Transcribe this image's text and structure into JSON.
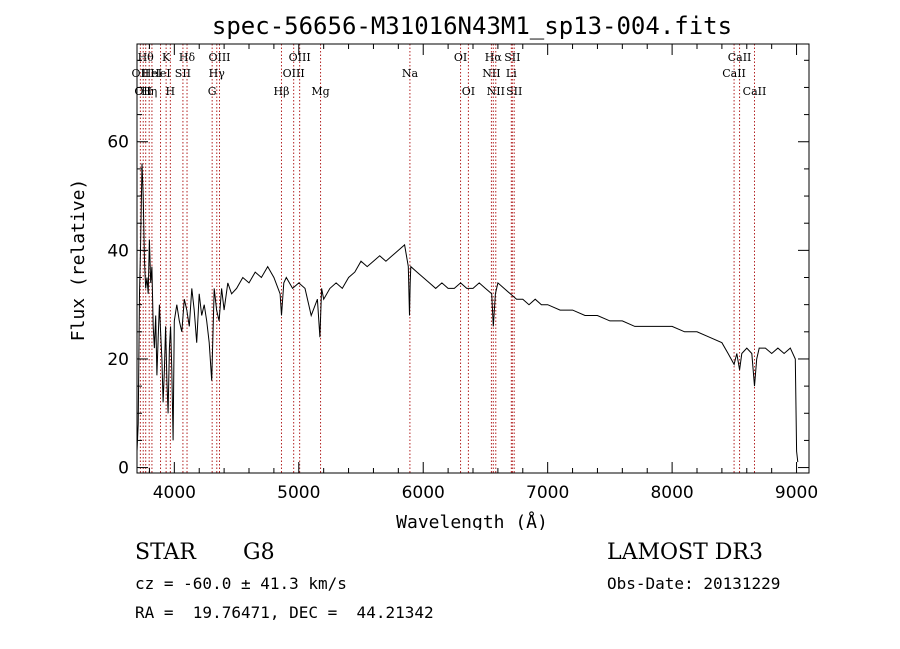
{
  "chart_data": {
    "type": "line",
    "title": "spec-56656-M31016N43M1_sp13-004.fits",
    "xlabel": "Wavelength (Å)",
    "ylabel": "Flux (relative)",
    "xlim": [
      3700,
      9100
    ],
    "ylim": [
      -1,
      78
    ],
    "x_ticks": [
      4000,
      5000,
      6000,
      7000,
      8000,
      9000
    ],
    "y_ticks": [
      0,
      20,
      40,
      60
    ],
    "x_minor_step": 200,
    "y_minor_step": 5,
    "grid": false,
    "line_color": "#000000",
    "marker_color": "#b22222",
    "series": [
      {
        "name": "flux",
        "x": [
          3700,
          3710,
          3720,
          3730,
          3740,
          3750,
          3760,
          3770,
          3780,
          3790,
          3800,
          3810,
          3820,
          3830,
          3840,
          3850,
          3860,
          3870,
          3880,
          3890,
          3900,
          3910,
          3920,
          3930,
          3940,
          3950,
          3960,
          3970,
          3980,
          3990,
          4000,
          4020,
          4040,
          4060,
          4080,
          4100,
          4120,
          4140,
          4160,
          4180,
          4200,
          4220,
          4240,
          4260,
          4280,
          4300,
          4320,
          4340,
          4360,
          4380,
          4400,
          4430,
          4460,
          4500,
          4550,
          4600,
          4650,
          4700,
          4750,
          4800,
          4850,
          4861,
          4880,
          4900,
          4950,
          5000,
          5050,
          5100,
          5150,
          5170,
          5183,
          5200,
          5250,
          5300,
          5350,
          5400,
          5450,
          5500,
          5550,
          5600,
          5650,
          5700,
          5750,
          5800,
          5850,
          5880,
          5890,
          5895,
          5900,
          5950,
          6000,
          6050,
          6100,
          6150,
          6200,
          6250,
          6300,
          6350,
          6400,
          6450,
          6500,
          6550,
          6563,
          6580,
          6600,
          6650,
          6700,
          6750,
          6800,
          6850,
          6900,
          6950,
          7000,
          7100,
          7200,
          7300,
          7400,
          7500,
          7600,
          7700,
          7800,
          7900,
          8000,
          8100,
          8200,
          8300,
          8400,
          8450,
          8498,
          8520,
          8542,
          8560,
          8600,
          8640,
          8662,
          8680,
          8700,
          8750,
          8800,
          8850,
          8900,
          8950,
          8990,
          9000,
          9010
        ],
        "y": [
          3,
          8,
          32,
          42,
          56,
          50,
          38,
          33,
          35,
          32,
          42,
          34,
          37,
          26,
          22,
          28,
          17,
          24,
          30,
          25,
          20,
          12,
          18,
          26,
          16,
          10,
          22,
          26,
          18,
          5,
          27,
          30,
          27,
          25,
          31,
          29,
          26,
          33,
          29,
          23,
          32,
          28,
          30,
          27,
          23,
          16,
          33,
          29,
          27,
          33,
          29,
          34,
          32,
          33,
          35,
          34,
          36,
          35,
          37,
          35,
          32,
          28,
          34,
          35,
          33,
          34,
          33,
          28,
          31,
          24,
          33,
          31,
          33,
          34,
          33,
          35,
          36,
          38,
          37,
          38,
          39,
          38,
          39,
          40,
          41,
          37,
          28,
          34,
          37,
          36,
          35,
          34,
          33,
          34,
          33,
          33,
          34,
          33,
          33,
          34,
          33,
          32,
          26,
          32,
          34,
          33,
          32,
          31,
          31,
          30,
          31,
          30,
          30,
          29,
          29,
          28,
          28,
          27,
          27,
          26,
          26,
          26,
          26,
          25,
          25,
          24,
          23,
          21,
          19,
          21,
          18,
          21,
          22,
          21,
          15,
          20,
          22,
          22,
          21,
          22,
          21,
          22,
          20,
          3,
          1
        ]
      }
    ],
    "lines": [
      {
        "wl": 3727,
        "name": "OII",
        "row": 1
      },
      {
        "wl": 3750,
        "name": "OII",
        "row": 2
      },
      {
        "wl": 3770,
        "name": "Hθ",
        "row": 0
      },
      {
        "wl": 3798,
        "name": "Hη",
        "row": 2
      },
      {
        "wl": 3820,
        "name": "HeI",
        "row": 1
      },
      {
        "wl": 3889,
        "name": "HeI",
        "row": 1
      },
      {
        "wl": 3934,
        "name": "K",
        "row": 0
      },
      {
        "wl": 3968,
        "name": "H",
        "row": 2
      },
      {
        "wl": 4069,
        "name": "SII",
        "row": 1
      },
      {
        "wl": 4102,
        "name": "Hδ",
        "row": 0
      },
      {
        "wl": 4304,
        "name": "G",
        "row": 2
      },
      {
        "wl": 4341,
        "name": "Hγ",
        "row": 1
      },
      {
        "wl": 4363,
        "name": "OIII",
        "row": 0
      },
      {
        "wl": 4861,
        "name": "Hβ",
        "row": 2
      },
      {
        "wl": 4959,
        "name": "OIII",
        "row": 1
      },
      {
        "wl": 5007,
        "name": "OIII",
        "row": 0
      },
      {
        "wl": 5175,
        "name": "Mg",
        "row": 2
      },
      {
        "wl": 5893,
        "name": "Na",
        "row": 1
      },
      {
        "wl": 6300,
        "name": "OI",
        "row": 0
      },
      {
        "wl": 6363,
        "name": "OI",
        "row": 2
      },
      {
        "wl": 6548,
        "name": "NII",
        "row": 1
      },
      {
        "wl": 6563,
        "name": "Hα",
        "row": 0
      },
      {
        "wl": 6583,
        "name": "NII",
        "row": 2
      },
      {
        "wl": 6708,
        "name": "Li",
        "row": 1
      },
      {
        "wl": 6716,
        "name": "SII",
        "row": 0
      },
      {
        "wl": 6731,
        "name": "SII",
        "row": 2
      },
      {
        "wl": 8498,
        "name": "CaII",
        "row": 1
      },
      {
        "wl": 8542,
        "name": "CaII",
        "row": 0
      },
      {
        "wl": 8662,
        "name": "CaII",
        "row": 2
      }
    ]
  },
  "info": {
    "object_class": "STAR",
    "subclass": "G8",
    "survey": "LAMOST DR3",
    "redshift": "cz = -60.0 ± 41.3 km/s",
    "obs_date": "Obs-Date: 20131229",
    "coords": "RA =  19.76471, DEC =  44.21342"
  }
}
